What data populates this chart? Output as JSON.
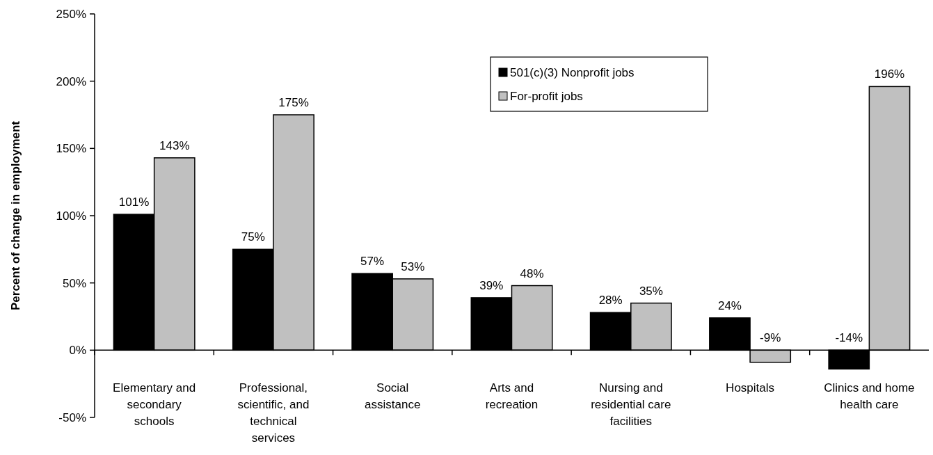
{
  "chart_data": {
    "type": "bar",
    "ylabel": "Percent of change in employment",
    "categories": [
      "Elementary and secondary schools",
      "Professional, scientific, and technical services",
      "Social assistance",
      "Arts and recreation",
      "Nursing and residential care facilities",
      "Hospitals",
      "Clinics and home health care"
    ],
    "series": [
      {
        "name": "501(c)(3) Nonprofit jobs",
        "color": "#000000",
        "values": [
          101,
          75,
          57,
          39,
          28,
          24,
          -14
        ],
        "value_labels": [
          "101%",
          "75%",
          "57%",
          "39%",
          "28%",
          "24%",
          "-14%"
        ]
      },
      {
        "name": "For-profit jobs",
        "color": "#c0c0c0",
        "values": [
          143,
          175,
          53,
          48,
          35,
          -9,
          196
        ],
        "value_labels": [
          "143%",
          "175%",
          "53%",
          "48%",
          "35%",
          "-9%",
          "196%"
        ]
      }
    ],
    "ylim": [
      -50,
      250
    ],
    "yticks": [
      {
        "value": -50,
        "label": "-50%"
      },
      {
        "value": 0,
        "label": "0%"
      },
      {
        "value": 50,
        "label": "50%"
      },
      {
        "value": 100,
        "label": "100%"
      },
      {
        "value": 150,
        "label": "150%"
      },
      {
        "value": 200,
        "label": "200%"
      },
      {
        "value": 250,
        "label": "250%"
      }
    ],
    "legend": "top right"
  }
}
